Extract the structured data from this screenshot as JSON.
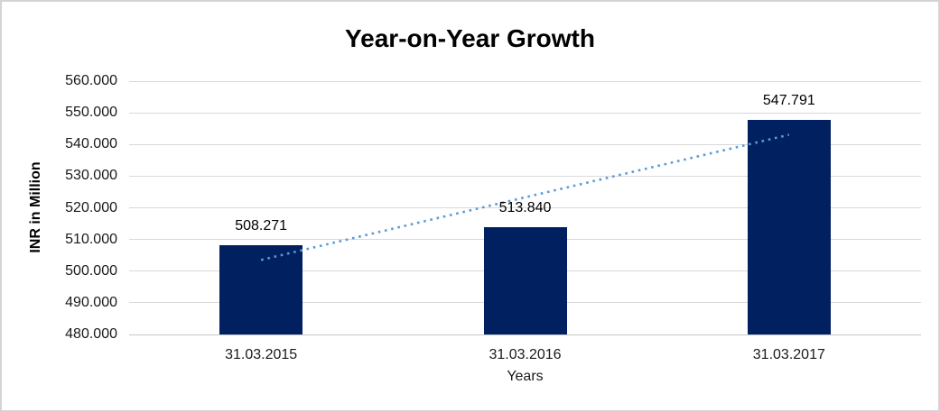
{
  "chart": {
    "colors": {
      "bar": "#002060",
      "trendline": "#5B9BD5",
      "gridline": "#D9D9D9",
      "axis_line": "#C6C6C6",
      "border": "#D4D4D4",
      "text": "#000000"
    }
  },
  "chart_data": {
    "type": "bar",
    "title": "Year-on-Year Growth",
    "xlabel": "Years",
    "ylabel": "INR in Million",
    "categories": [
      "31.03.2015",
      "31.03.2016",
      "31.03.2017"
    ],
    "values": [
      508.271,
      513.84,
      547.791
    ],
    "data_labels": [
      "508.271",
      "513.840",
      "547.791"
    ],
    "ylim": [
      480,
      560
    ],
    "ytick_step": 10,
    "ytick_labels": [
      "480.000",
      "490.000",
      "500.000",
      "510.000",
      "520.000",
      "530.000",
      "540.000",
      "550.000",
      "560.000"
    ],
    "grid": true,
    "legend": "none",
    "trendline": {
      "style": "dotted",
      "shape": "linear",
      "endpoints_value": [
        503.54,
        543.06
      ]
    }
  }
}
